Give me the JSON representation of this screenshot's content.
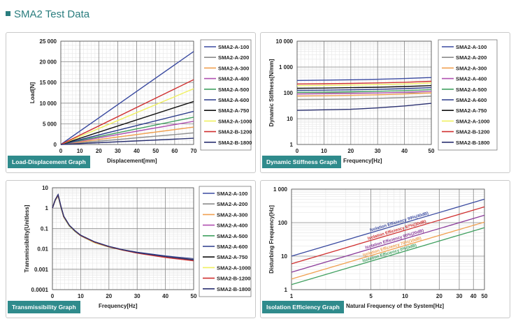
{
  "page_title": "SMA2 Test Data",
  "legend_items": [
    "SMA2-A-100",
    "SMA2-A-200",
    "SMA2-A-300",
    "SMA2-A-400",
    "SMA2-A-500",
    "SMA2-A-600",
    "SMA2-A-750",
    "SMA2-A-1000",
    "SMA2-B-1200",
    "SMA2-B-1800"
  ],
  "series_colors": [
    "#3a4aa0",
    "#8c8c8c",
    "#f0a050",
    "#b050b0",
    "#40a060",
    "#2a3a8a",
    "#111111",
    "#f0f060",
    "#d03030",
    "#2a3070"
  ],
  "chart_data": [
    {
      "type": "line",
      "tag": "Load-Displacement Graph",
      "xlabel": "Displacement[mm]",
      "ylabel": "Load[N]",
      "xlim": [
        0,
        70
      ],
      "ylim": [
        0,
        25000
      ],
      "xticks": [
        "0",
        "10",
        "20",
        "30",
        "40",
        "50",
        "60",
        "70"
      ],
      "yticks": [
        "0",
        "5 000",
        "10 000",
        "15 000",
        "20 000",
        "25 000"
      ],
      "grid": true,
      "legend_placement": "right",
      "series": [
        {
          "name": "SMA2-A-100",
          "x": [
            0,
            70
          ],
          "y": [
            0,
            22500
          ]
        },
        {
          "name": "SMA2-A-200",
          "x": [
            0,
            70
          ],
          "y": [
            0,
            2800
          ]
        },
        {
          "name": "SMA2-A-300",
          "x": [
            0,
            70
          ],
          "y": [
            0,
            4200
          ]
        },
        {
          "name": "SMA2-A-400",
          "x": [
            0,
            70
          ],
          "y": [
            0,
            5600
          ]
        },
        {
          "name": "SMA2-A-500",
          "x": [
            0,
            70
          ],
          "y": [
            0,
            6600
          ]
        },
        {
          "name": "SMA2-A-600",
          "x": [
            0,
            70
          ],
          "y": [
            0,
            8000
          ]
        },
        {
          "name": "SMA2-A-750",
          "x": [
            0,
            70
          ],
          "y": [
            0,
            10400
          ]
        },
        {
          "name": "SMA2-A-1000",
          "x": [
            0,
            70
          ],
          "y": [
            0,
            13500
          ]
        },
        {
          "name": "SMA2-B-1200",
          "x": [
            0,
            70
          ],
          "y": [
            0,
            15700
          ]
        },
        {
          "name": "SMA2-B-1800",
          "x": [
            0,
            70
          ],
          "y": [
            0,
            1500
          ]
        }
      ]
    },
    {
      "type": "line",
      "tag": "Dynamic Stiffness Graph",
      "xlabel": "Frequency[Hz]",
      "ylabel": "Dynamic Stiffness[N/mm]",
      "xlim": [
        0,
        50
      ],
      "ylim": [
        1,
        10000
      ],
      "yscale": "log",
      "xticks": [
        "0",
        "10",
        "20",
        "30",
        "40",
        "50"
      ],
      "yticks": [
        "1",
        "10",
        "100",
        "1 000",
        "10 000"
      ],
      "grid": true,
      "legend_placement": "right",
      "series": [
        {
          "name": "SMA2-A-100",
          "x": [
            0,
            10,
            20,
            30,
            40,
            50
          ],
          "y": [
            300,
            310,
            320,
            335,
            355,
            390
          ]
        },
        {
          "name": "SMA2-A-200",
          "x": [
            0,
            10,
            20,
            30,
            40,
            50
          ],
          "y": [
            55,
            56,
            58,
            61,
            66,
            74
          ]
        },
        {
          "name": "SMA2-A-300",
          "x": [
            0,
            10,
            20,
            30,
            40,
            50
          ],
          "y": [
            75,
            77,
            80,
            84,
            90,
            100
          ]
        },
        {
          "name": "SMA2-A-400",
          "x": [
            0,
            10,
            20,
            30,
            40,
            50
          ],
          "y": [
            90,
            92,
            95,
            99,
            105,
            115
          ]
        },
        {
          "name": "SMA2-A-500",
          "x": [
            0,
            10,
            20,
            30,
            40,
            50
          ],
          "y": [
            105,
            107,
            110,
            115,
            122,
            133
          ]
        },
        {
          "name": "SMA2-A-600",
          "x": [
            0,
            10,
            20,
            30,
            40,
            50
          ],
          "y": [
            125,
            127,
            131,
            136,
            145,
            158
          ]
        },
        {
          "name": "SMA2-A-750",
          "x": [
            0,
            10,
            20,
            30,
            40,
            50
          ],
          "y": [
            150,
            153,
            158,
            165,
            175,
            190
          ]
        },
        {
          "name": "SMA2-A-1000",
          "x": [
            0,
            10,
            20,
            30,
            40,
            50
          ],
          "y": [
            190,
            194,
            200,
            208,
            220,
            240
          ]
        },
        {
          "name": "SMA2-B-1200",
          "x": [
            0,
            10,
            20,
            30,
            40,
            50
          ],
          "y": [
            220,
            225,
            232,
            242,
            256,
            280
          ]
        },
        {
          "name": "SMA2-B-1800",
          "x": [
            0,
            10,
            20,
            30,
            40,
            50
          ],
          "y": [
            21,
            22,
            23,
            26,
            31,
            39
          ]
        }
      ]
    },
    {
      "type": "line",
      "tag": "Transmissibility Graph",
      "xlabel": "Frequency[Hz]",
      "ylabel": "Transmissibility[Unitless]",
      "xlim": [
        0,
        50
      ],
      "ylim": [
        0.0001,
        10
      ],
      "yscale": "log",
      "xticks": [
        "0",
        "10",
        "20",
        "30",
        "40",
        "50"
      ],
      "yticks": [
        "0.0001",
        "0.001",
        "0.01",
        "0.1",
        "1",
        "10"
      ],
      "grid": true,
      "legend_placement": "right",
      "series": [
        {
          "name": "SMA2-A-100",
          "x": [
            0,
            1,
            2,
            3,
            4,
            6,
            8,
            10,
            15,
            20,
            25,
            30,
            40,
            50
          ],
          "y": [
            1,
            2.5,
            4.3,
            1.2,
            0.38,
            0.14,
            0.075,
            0.045,
            0.021,
            0.013,
            0.009,
            0.0068,
            0.0045,
            0.0033
          ]
        },
        {
          "name": "SMA2-A-200",
          "x": [
            0,
            1,
            2,
            3,
            4,
            6,
            8,
            10,
            15,
            20,
            25,
            30,
            40,
            50
          ],
          "y": [
            1,
            2.4,
            4.1,
            1.15,
            0.37,
            0.135,
            0.073,
            0.044,
            0.02,
            0.0125,
            0.0088,
            0.0066,
            0.0043,
            0.0031
          ]
        },
        {
          "name": "SMA2-A-300",
          "x": [
            0,
            1,
            2,
            3,
            4,
            6,
            8,
            10,
            15,
            20,
            25,
            30,
            40,
            50
          ],
          "y": [
            1,
            2.45,
            4.2,
            1.18,
            0.37,
            0.138,
            0.074,
            0.045,
            0.021,
            0.0128,
            0.0088,
            0.0066,
            0.0042,
            0.003
          ]
        },
        {
          "name": "SMA2-A-400",
          "x": [
            0,
            1,
            2,
            3,
            4,
            6,
            8,
            10,
            15,
            20,
            25,
            30,
            40,
            50
          ],
          "y": [
            1,
            2.5,
            4.4,
            1.2,
            0.38,
            0.14,
            0.075,
            0.046,
            0.021,
            0.013,
            0.0089,
            0.0066,
            0.0041,
            0.0029
          ]
        },
        {
          "name": "SMA2-A-500",
          "x": [
            0,
            1,
            2,
            3,
            4,
            6,
            8,
            10,
            15,
            20,
            25,
            30,
            40,
            50
          ],
          "y": [
            1,
            2.4,
            4.0,
            1.1,
            0.36,
            0.132,
            0.072,
            0.044,
            0.02,
            0.0124,
            0.0086,
            0.0065,
            0.0041,
            0.0029
          ]
        },
        {
          "name": "SMA2-A-600",
          "x": [
            0,
            1,
            2,
            3,
            4,
            6,
            8,
            10,
            15,
            20,
            25,
            30,
            40,
            50
          ],
          "y": [
            1,
            2.55,
            4.5,
            1.22,
            0.39,
            0.142,
            0.076,
            0.046,
            0.021,
            0.013,
            0.009,
            0.0067,
            0.0043,
            0.003
          ]
        },
        {
          "name": "SMA2-A-750",
          "x": [
            0,
            1,
            2,
            3,
            4,
            6,
            8,
            10,
            15,
            20,
            25,
            30,
            40,
            50
          ],
          "y": [
            1,
            2.5,
            4.3,
            1.2,
            0.38,
            0.14,
            0.075,
            0.045,
            0.021,
            0.0128,
            0.0087,
            0.0064,
            0.004,
            0.0028
          ]
        },
        {
          "name": "SMA2-A-1000",
          "x": [
            0,
            1,
            2,
            3,
            4,
            6,
            8,
            10,
            15,
            20,
            25,
            30,
            40,
            50
          ],
          "y": [
            1,
            2.45,
            4.2,
            1.17,
            0.37,
            0.137,
            0.074,
            0.045,
            0.02,
            0.0126,
            0.0086,
            0.0063,
            0.0039,
            0.0027
          ]
        },
        {
          "name": "SMA2-B-1200",
          "x": [
            0,
            1,
            2,
            3,
            4,
            6,
            8,
            10,
            15,
            20,
            25,
            30,
            40,
            50
          ],
          "y": [
            1,
            2.5,
            4.35,
            1.2,
            0.38,
            0.14,
            0.075,
            0.045,
            0.021,
            0.0127,
            0.0086,
            0.0062,
            0.0038,
            0.0026
          ]
        },
        {
          "name": "SMA2-B-1800",
          "x": [
            0,
            1,
            2,
            3,
            4,
            6,
            8,
            10,
            15,
            20,
            25,
            30,
            40,
            50
          ],
          "y": [
            1,
            2.6,
            4.6,
            1.25,
            0.4,
            0.145,
            0.078,
            0.047,
            0.022,
            0.0132,
            0.009,
            0.0066,
            0.0042,
            0.0029
          ]
        }
      ]
    },
    {
      "type": "line",
      "tag": "Isolation Efficiency Graph",
      "xlabel": "Natural Frequency of the System[Hz]",
      "ylabel": "Disturbing Frequency[Hz]",
      "xscale": "log",
      "yscale": "log",
      "xlim": [
        1,
        50
      ],
      "ylim": [
        1,
        1000
      ],
      "xticks": [
        "1",
        "5",
        "10",
        "20",
        "30",
        "40",
        "50"
      ],
      "yticks": [
        "1",
        "10",
        "100",
        "1 000"
      ],
      "grid": true,
      "series": [
        {
          "label": "Isolation Efficiency 99%(40dB)",
          "color": "#3a4aa0",
          "x": [
            1,
            50
          ],
          "y": [
            10,
            500
          ]
        },
        {
          "label": "Isolation Efficiency 97%(30dB)",
          "color": "#d03030",
          "x": [
            1,
            50
          ],
          "y": [
            5.9,
            295
          ]
        },
        {
          "label": "Isolation Efficiency 90%(20dB)",
          "color": "#8a3a9a",
          "x": [
            1,
            50
          ],
          "y": [
            3.32,
            166
          ]
        },
        {
          "label": "Isolation Efficiency 70%(10dB)",
          "color": "#f0a050",
          "x": [
            1,
            50
          ],
          "y": [
            2.08,
            104
          ]
        },
        {
          "label": "Isolation Efficiency 0%(0dB)",
          "color": "#40a060",
          "x": [
            1,
            50
          ],
          "y": [
            1.41,
            70.7
          ]
        }
      ]
    }
  ]
}
